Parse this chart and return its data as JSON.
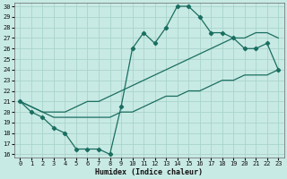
{
  "xlabel": "Humidex (Indice chaleur)",
  "background_color": "#c8eae4",
  "grid_color": "#a8d4cc",
  "line_color": "#1a6e60",
  "x_values": [
    0,
    1,
    2,
    3,
    4,
    5,
    6,
    7,
    8,
    9,
    10,
    11,
    12,
    13,
    14,
    15,
    16,
    17,
    18,
    19,
    20,
    21,
    22,
    23
  ],
  "main_line": [
    21,
    20,
    19.5,
    18.5,
    18,
    16.5,
    16.5,
    16.5,
    16.0,
    20.5,
    26.0,
    27.5,
    26.5,
    28.0,
    30.0,
    30.0,
    29.0,
    27.5,
    27.5,
    27.0,
    26.0,
    26.0,
    26.5,
    24.0
  ],
  "upper_line": [
    21,
    20.5,
    20.0,
    20.0,
    20.0,
    20.5,
    21.0,
    21.0,
    21.5,
    22.0,
    22.5,
    23.0,
    23.5,
    24.0,
    24.5,
    25.0,
    25.5,
    26.0,
    26.5,
    27.0,
    27.0,
    27.5,
    27.5,
    27.0
  ],
  "lower_line": [
    21,
    20.5,
    20.0,
    19.5,
    19.5,
    19.5,
    19.5,
    19.5,
    19.5,
    20.0,
    20.0,
    20.5,
    21.0,
    21.5,
    21.5,
    22.0,
    22.0,
    22.5,
    23.0,
    23.0,
    23.5,
    23.5,
    23.5,
    24.0
  ],
  "ylim": [
    16,
    30
  ],
  "yticks": [
    16,
    17,
    18,
    19,
    20,
    21,
    22,
    23,
    24,
    25,
    26,
    27,
    28,
    29,
    30
  ],
  "xlim": [
    -0.5,
    23.5
  ],
  "xticks": [
    0,
    1,
    2,
    3,
    4,
    5,
    6,
    7,
    8,
    9,
    10,
    11,
    12,
    13,
    14,
    15,
    16,
    17,
    18,
    19,
    20,
    21,
    22,
    23
  ]
}
